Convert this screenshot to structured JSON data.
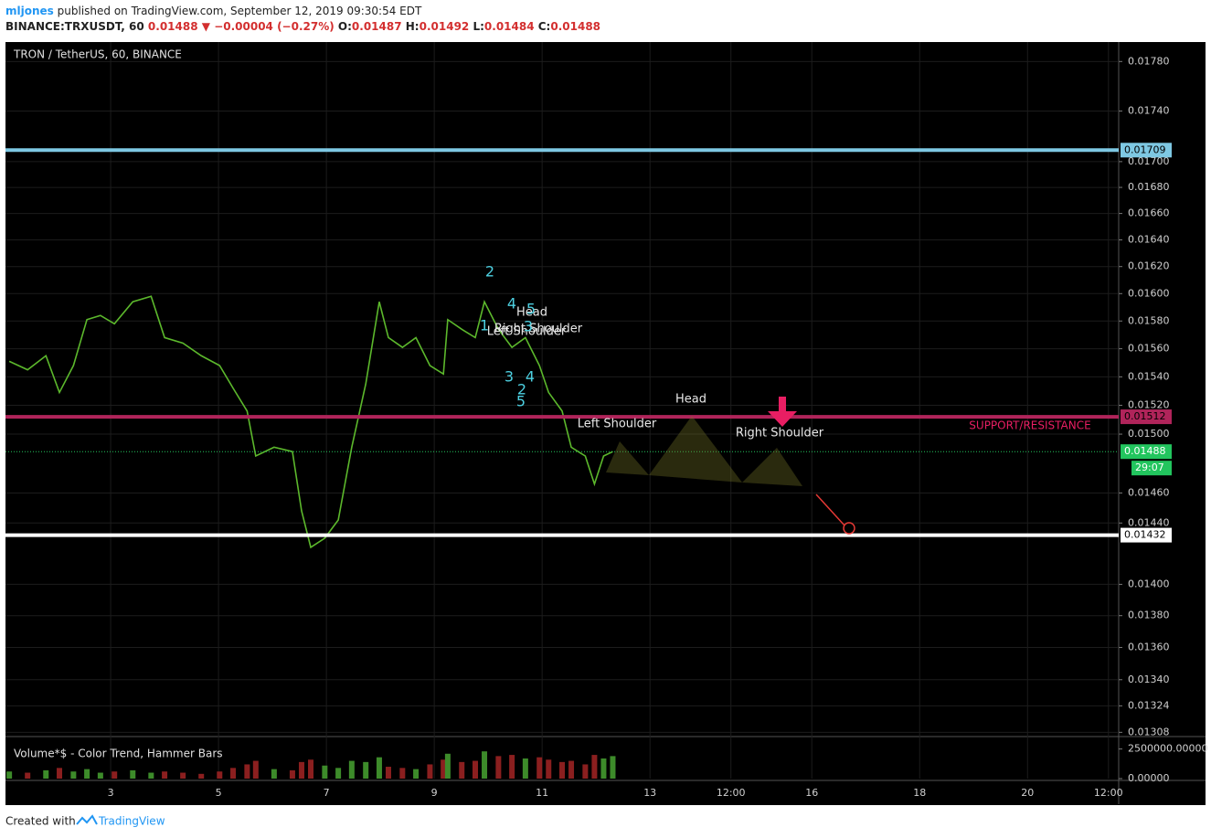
{
  "header": {
    "author": "mljones",
    "published": "published on TradingView.com, September 12, 2019 09:30:54 EDT",
    "symbol": "BINANCE:TRXUSDT, 60",
    "last": "0.01488",
    "arrow": "▼",
    "change": "−0.00004 (−0.27%)",
    "open_label": "O:",
    "open": "0.01487",
    "high_label": "H:",
    "high": "0.01492",
    "low_label": "L:",
    "low": "0.01484",
    "close_label": "C:",
    "close": "0.01488"
  },
  "annotations": [
    "Head",
    "Left Shoulder",
    "Right Shoulder",
    "SUPPORT/RESISTANCE",
    "Head",
    "Right Shoulder",
    "Left Shoulder",
    "2",
    "4",
    "5",
    "1",
    "3",
    "3",
    "4",
    "2",
    "5"
  ],
  "footer": {
    "created_with": "Created with",
    "brand": "TradingView"
  },
  "chart_data": [
    {
      "type": "line",
      "title": "TRON / TetherUS, 60, BINANCE",
      "color": "#5cb82c",
      "log_scale": true,
      "grid": true,
      "x": [
        1.12,
        1.46,
        1.8,
        2.05,
        2.31,
        2.56,
        2.81,
        3.07,
        3.41,
        3.75,
        4.0,
        4.34,
        4.68,
        5.02,
        5.27,
        5.53,
        5.69,
        6.03,
        6.37,
        6.54,
        6.71,
        6.97,
        7.22,
        7.47,
        7.73,
        7.98,
        8.15,
        8.41,
        8.66,
        8.92,
        9.17,
        9.25,
        9.51,
        9.76,
        9.93,
        10.19,
        10.44,
        10.69,
        10.95,
        11.12,
        11.37,
        11.54,
        11.8,
        11.97,
        12.14,
        12.31
      ],
      "values": [
        0.01551,
        0.01545,
        0.01555,
        0.01529,
        0.01548,
        0.01581,
        0.01584,
        0.01578,
        0.01594,
        0.01598,
        0.01568,
        0.01564,
        0.01555,
        0.01548,
        0.01532,
        0.01516,
        0.01485,
        0.01491,
        0.01488,
        0.01448,
        0.01424,
        0.0143,
        0.01442,
        0.01491,
        0.01535,
        0.01594,
        0.01568,
        0.01561,
        0.01568,
        0.01548,
        0.01542,
        0.01581,
        0.01574,
        0.01568,
        0.01594,
        0.01574,
        0.01561,
        0.01568,
        0.01548,
        0.01529,
        0.01516,
        0.01491,
        0.01485,
        0.01466,
        0.01485,
        0.01488
      ],
      "xlim": [
        1.05,
        21.69
      ],
      "xticks": [
        3,
        5,
        7,
        9,
        11,
        13,
        {
          "value": 14.5,
          "label": "12:00"
        },
        16,
        18,
        20,
        {
          "value": 21.5,
          "label": "12:00"
        }
      ],
      "ylim": [
        0.01306,
        0.01796
      ],
      "yticks": [
        {
          "value": 0.0178,
          "label": "0.01780"
        },
        {
          "value": 0.0174,
          "label": "0.01740"
        },
        {
          "value": 0.017,
          "label": "0.01700"
        },
        {
          "value": 0.0168,
          "label": "0.01680"
        },
        {
          "value": 0.0166,
          "label": "0.01660"
        },
        {
          "value": 0.0164,
          "label": "0.01640"
        },
        {
          "value": 0.0162,
          "label": "0.01620"
        },
        {
          "value": 0.016,
          "label": "0.01600"
        },
        {
          "value": 0.0158,
          "label": "0.01580"
        },
        {
          "value": 0.0156,
          "label": "0.01560"
        },
        {
          "value": 0.0154,
          "label": "0.01540"
        },
        {
          "value": 0.0152,
          "label": "0.01520"
        },
        {
          "value": 0.015,
          "label": "0.01500"
        },
        {
          "value": 0.0146,
          "label": "0.01460"
        },
        {
          "value": 0.0144,
          "label": "0.01440"
        },
        {
          "value": 0.014,
          "label": "0.01400"
        },
        {
          "value": 0.0138,
          "label": "0.01380"
        },
        {
          "value": 0.0136,
          "label": "0.01360"
        },
        {
          "value": 0.0134,
          "label": "0.01340"
        },
        0.01324,
        0.01308
      ],
      "horizontal_lines": [
        {
          "value": 0.01709,
          "color": "#7ec8e3",
          "style": "solid"
        },
        {
          "value": 0.01512,
          "color": "#b0245a",
          "style": "solid"
        },
        {
          "value": 0.01432,
          "color": "#ffffff",
          "style": "solid"
        },
        {
          "value": 0.01488,
          "color": "#22c55e",
          "style": "dotted"
        }
      ],
      "countdown": "29:07"
    },
    {
      "type": "bar",
      "title": "Volume*$ - Color Trend, Hammer Bars",
      "color_up": "#3d8b2a",
      "color_down": "#8b1f1f",
      "values": [
        600000,
        500000,
        700000,
        900000,
        600000,
        800000,
        500000,
        600000,
        700000,
        500000,
        600000,
        500000,
        400000,
        600000,
        900000,
        1200000,
        1500000,
        800000,
        700000,
        1400000,
        1600000,
        1100000,
        900000,
        1500000,
        1400000,
        1800000,
        1000000,
        900000,
        800000,
        1200000,
        1600000,
        2100000,
        1400000,
        1500000,
        2300000,
        1900000,
        2000000,
        1700000,
        1800000,
        1600000,
        1400000,
        1500000,
        1200000,
        2000000,
        1700000,
        1900000
      ],
      "ylim": [
        0,
        3550000
      ],
      "yticks": [
        {
          "value": 2500000,
          "label": "2500000.00000"
        },
        {
          "value": 0,
          "label": "0.00000"
        }
      ]
    }
  ]
}
